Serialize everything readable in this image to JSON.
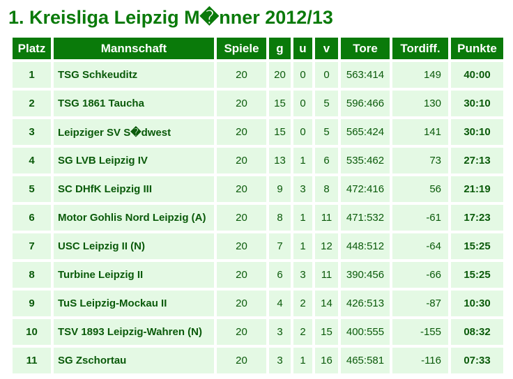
{
  "title": "1. Kreisliga Leipzig M�nner 2012/13",
  "headers": [
    "Platz",
    "Mannschaft",
    "Spiele",
    "g",
    "u",
    "v",
    "Tore",
    "Tordiff.",
    "Punkte"
  ],
  "rows": [
    {
      "platz": "1",
      "team": "TSG Schkeuditz",
      "spiele": "20",
      "g": "20",
      "u": "0",
      "v": "0",
      "tore": "563:414",
      "diff": "149",
      "punkte": "40:00"
    },
    {
      "platz": "2",
      "team": "TSG 1861 Taucha",
      "spiele": "20",
      "g": "15",
      "u": "0",
      "v": "5",
      "tore": "596:466",
      "diff": "130",
      "punkte": "30:10"
    },
    {
      "platz": "3",
      "team": "Leipziger SV S�dwest",
      "spiele": "20",
      "g": "15",
      "u": "0",
      "v": "5",
      "tore": "565:424",
      "diff": "141",
      "punkte": "30:10"
    },
    {
      "platz": "4",
      "team": "SG LVB Leipzig IV",
      "spiele": "20",
      "g": "13",
      "u": "1",
      "v": "6",
      "tore": "535:462",
      "diff": "73",
      "punkte": "27:13"
    },
    {
      "platz": "5",
      "team": "SC DHfK Leipzig III",
      "spiele": "20",
      "g": "9",
      "u": "3",
      "v": "8",
      "tore": "472:416",
      "diff": "56",
      "punkte": "21:19"
    },
    {
      "platz": "6",
      "team": "Motor Gohlis Nord Leipzig (A)",
      "spiele": "20",
      "g": "8",
      "u": "1",
      "v": "11",
      "tore": "471:532",
      "diff": "-61",
      "punkte": "17:23"
    },
    {
      "platz": "7",
      "team": "USC Leipzig II (N)",
      "spiele": "20",
      "g": "7",
      "u": "1",
      "v": "12",
      "tore": "448:512",
      "diff": "-64",
      "punkte": "15:25"
    },
    {
      "platz": "8",
      "team": "Turbine Leipzig II",
      "spiele": "20",
      "g": "6",
      "u": "3",
      "v": "11",
      "tore": "390:456",
      "diff": "-66",
      "punkte": "15:25"
    },
    {
      "platz": "9",
      "team": "TuS Leipzig-Mockau II",
      "spiele": "20",
      "g": "4",
      "u": "2",
      "v": "14",
      "tore": "426:513",
      "diff": "-87",
      "punkte": "10:30"
    },
    {
      "platz": "10",
      "team": "TSV 1893 Leipzig-Wahren (N)",
      "spiele": "20",
      "g": "3",
      "u": "2",
      "v": "15",
      "tore": "400:555",
      "diff": "-155",
      "punkte": "08:32"
    },
    {
      "platz": "11",
      "team": "SG Zschortau",
      "spiele": "20",
      "g": "3",
      "u": "1",
      "v": "16",
      "tore": "465:581",
      "diff": "-116",
      "punkte": "07:33"
    }
  ],
  "colors": {
    "header_bg": "#0a7a0a",
    "cell_bg": "#e4f9e4",
    "text": "#0a5a0a"
  }
}
